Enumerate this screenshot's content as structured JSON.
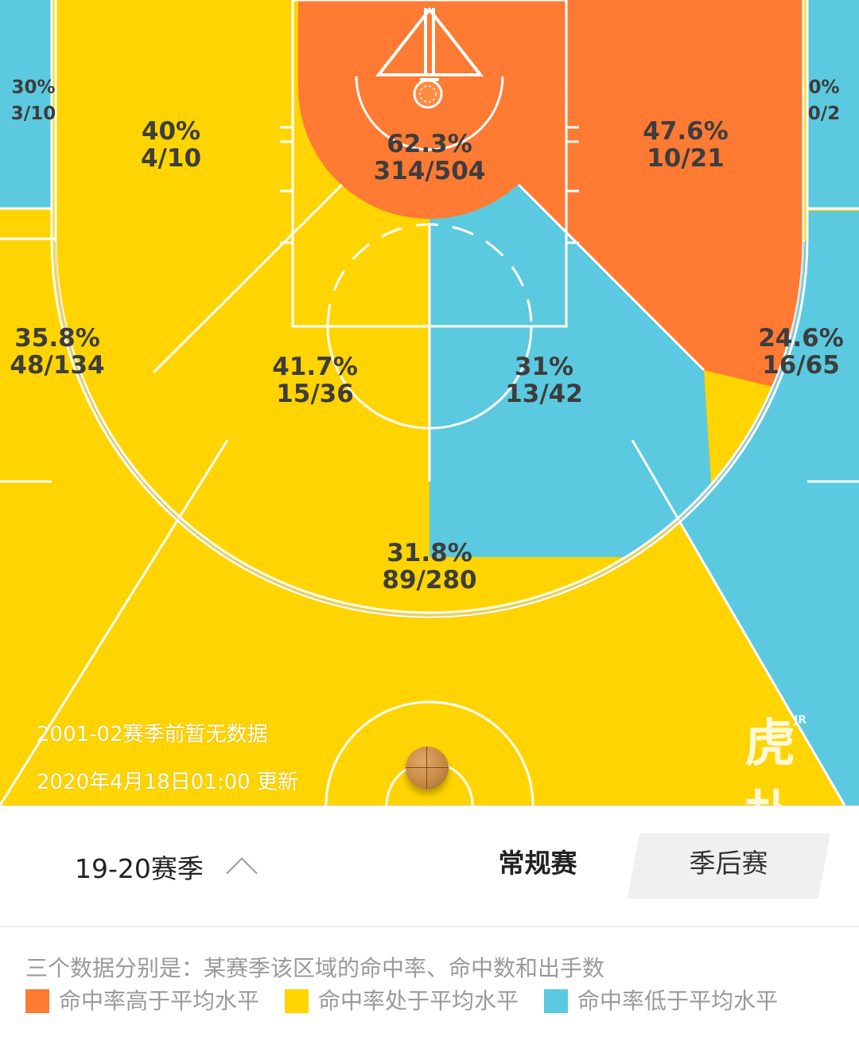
{
  "colors": {
    "above_avg": "#FF7A33",
    "at_avg": "#FFD400",
    "below_avg": "#5BC9DF",
    "line": "#ffffff"
  },
  "zones": {
    "left_corner": {
      "pct": "30%",
      "frac": "3/10"
    },
    "left_baseline_mid": {
      "pct": "40%",
      "frac": "4/10"
    },
    "restricted": {
      "pct": "62.3%",
      "frac": "314/504"
    },
    "right_baseline_mid": {
      "pct": "47.6%",
      "frac": "10/21"
    },
    "right_corner": {
      "pct": "0%",
      "frac": "0/2"
    },
    "left_wing_three": {
      "pct": "35.8%",
      "frac": "48/134"
    },
    "left_mid": {
      "pct": "41.7%",
      "frac": "15/36"
    },
    "right_mid": {
      "pct": "31%",
      "frac": "13/42"
    },
    "right_wing_three": {
      "pct": "24.6%",
      "frac": "16/65"
    },
    "top_three": {
      "pct": "31.8%",
      "frac": "89/280"
    }
  },
  "notes": {
    "no_data": "2001-02赛季前暂无数据",
    "updated": "2020年4月18日01:00 更新"
  },
  "watermark": {
    "text": "虎扑",
    "small": "JR"
  },
  "controls": {
    "season": "19-20赛季",
    "season_chevron_icon": "chevron-up-icon",
    "tabs": [
      "常规赛",
      "季后赛"
    ],
    "active_tab": "常规赛"
  },
  "legend": {
    "description": "三个数据分别是：某赛季该区域的命中率、命中数和出手数",
    "items": [
      {
        "label": "命中率高于平均水平",
        "color": "#FF7A33"
      },
      {
        "label": "命中率处于平均水平",
        "color": "#FFD400"
      },
      {
        "label": "命中率低于平均水平",
        "color": "#5BC9DF"
      }
    ]
  }
}
